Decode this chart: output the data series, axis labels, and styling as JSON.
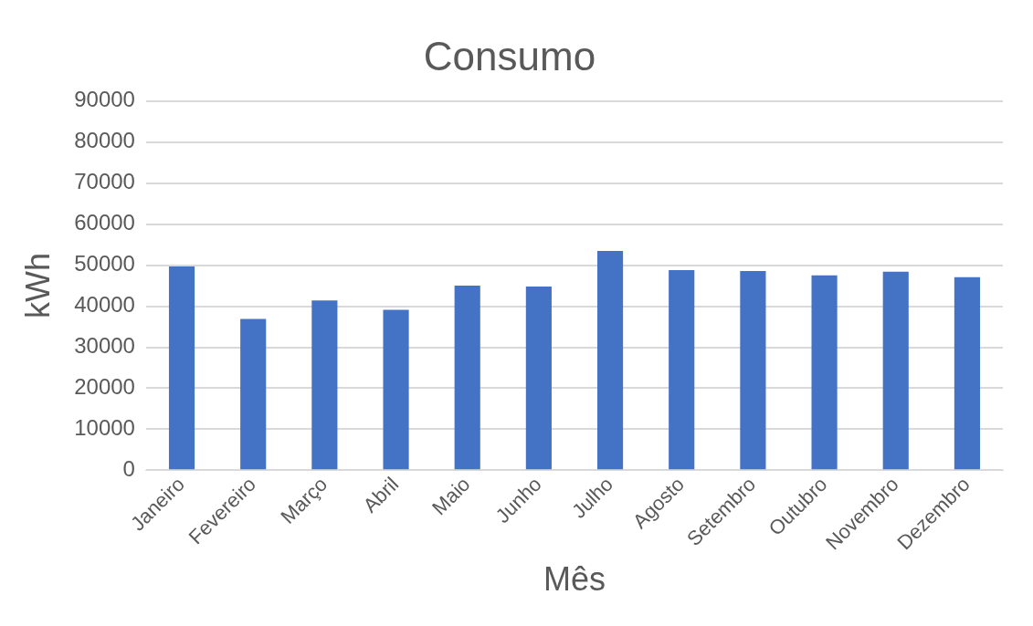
{
  "chart_data": {
    "type": "bar",
    "title": "Consumo",
    "xlabel": "Mês",
    "ylabel": "kWh",
    "categories": [
      "Janeiro",
      "Fevereiro",
      "Março",
      "Abril",
      "Maio",
      "Junho",
      "Julho",
      "Agosto",
      "Setembro",
      "Outubro",
      "Novembro",
      "Dezembro"
    ],
    "values": [
      49700,
      36900,
      41400,
      39100,
      45000,
      44800,
      53500,
      48800,
      48600,
      47500,
      48400,
      47100
    ],
    "color": "#4472c4",
    "ylim": [
      0,
      90000
    ],
    "yticks": [
      0,
      10000,
      20000,
      30000,
      40000,
      50000,
      60000,
      70000,
      80000,
      90000
    ],
    "grid": "y",
    "legend": false
  }
}
